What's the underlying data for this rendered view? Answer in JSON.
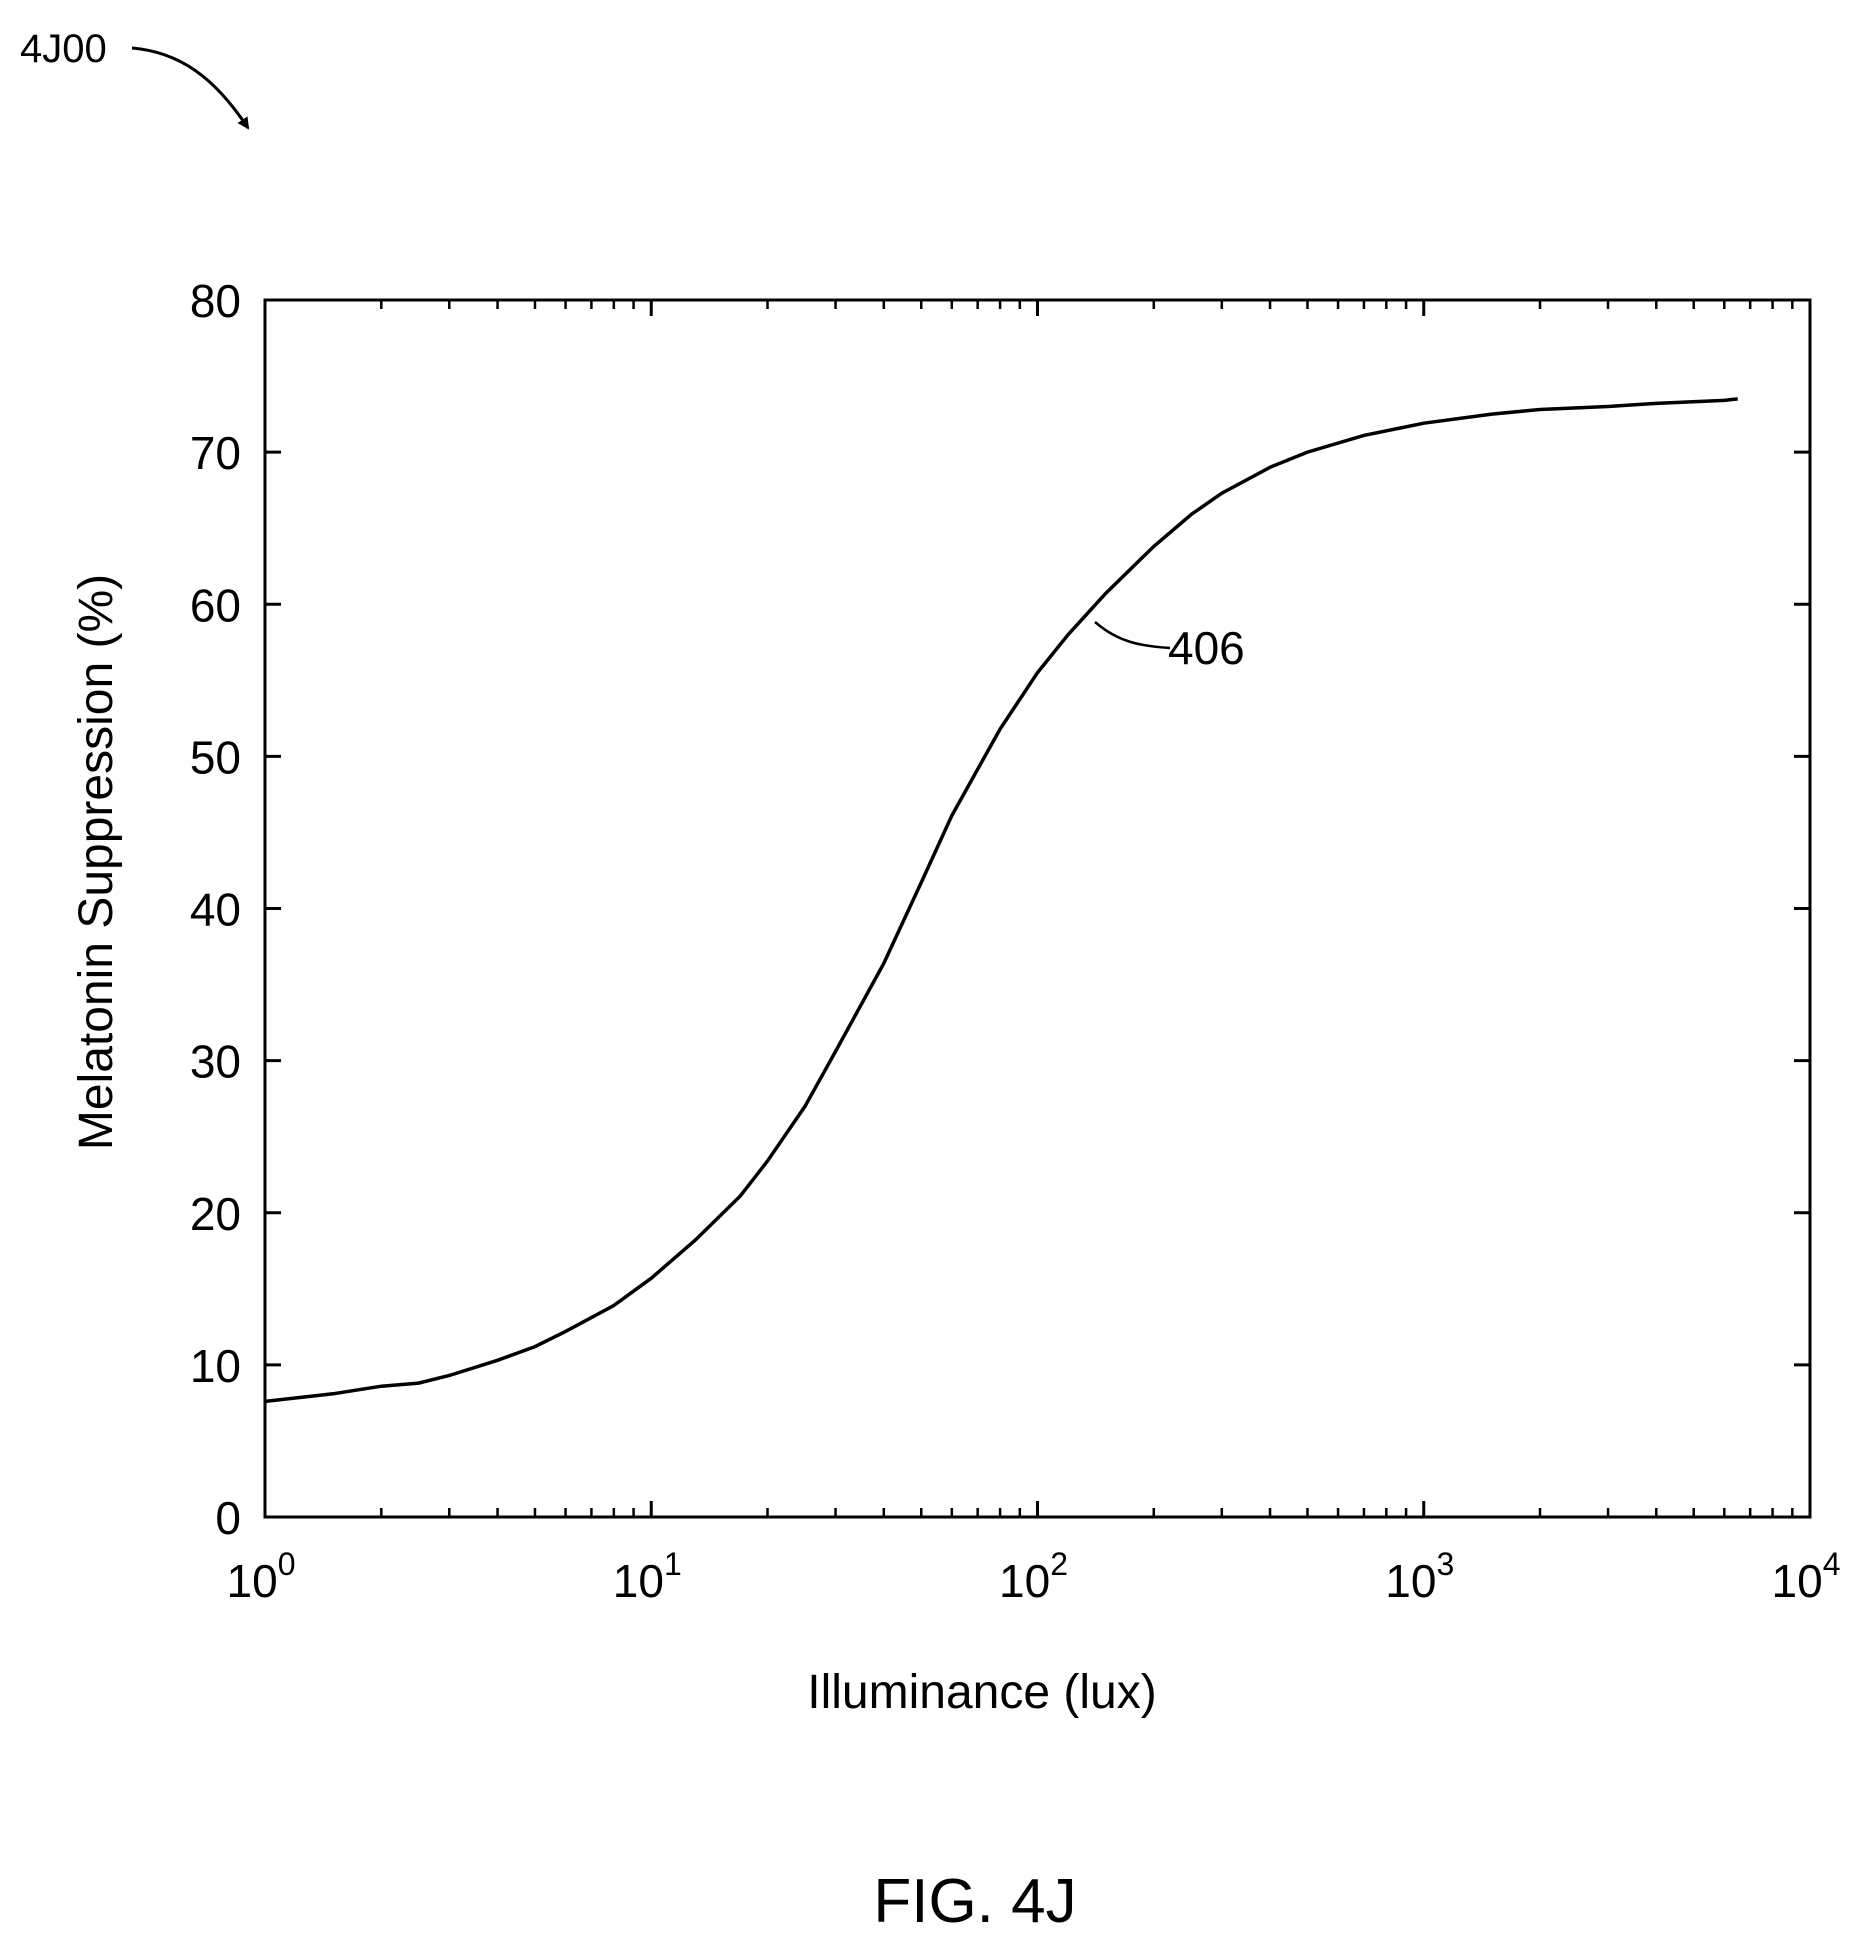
{
  "figure": {
    "reference_label": "4J00",
    "caption": "FIG. 4J",
    "callout_label": "406"
  },
  "chart_data": {
    "type": "line",
    "title": "",
    "xlabel": "Illuminance (lux)",
    "ylabel": "Melatonin Suppression (%)",
    "xscale": "log",
    "xlim": [
      1,
      10000
    ],
    "ylim": [
      0,
      80
    ],
    "x_ticks": [
      {
        "value": 1,
        "base": "10",
        "exp": "0"
      },
      {
        "value": 10,
        "base": "10",
        "exp": "1"
      },
      {
        "value": 100,
        "base": "10",
        "exp": "2"
      },
      {
        "value": 1000,
        "base": "10",
        "exp": "3"
      },
      {
        "value": 10000,
        "base": "10",
        "exp": "4"
      }
    ],
    "y_ticks": [
      0,
      10,
      20,
      30,
      40,
      50,
      60,
      70,
      80
    ],
    "grid": false,
    "series": [
      {
        "x": [
          1,
          1.5,
          2,
          2.5,
          3,
          4,
          5,
          6,
          8,
          10,
          13,
          17,
          20,
          25,
          30,
          40,
          50,
          60,
          80,
          100,
          120,
          150,
          200,
          250,
          300,
          400,
          500,
          700,
          1000,
          1500,
          2000,
          3000,
          4000,
          6000,
          6500
        ],
        "y": [
          7.6,
          8.1,
          8.6,
          8.8,
          9.3,
          10.3,
          11.2,
          12.2,
          13.9,
          15.7,
          18.2,
          21.1,
          23.4,
          27.0,
          30.6,
          36.4,
          41.7,
          46.1,
          51.8,
          55.5,
          58.0,
          60.7,
          63.8,
          65.9,
          67.3,
          69.0,
          70.0,
          71.1,
          71.9,
          72.5,
          72.8,
          73.0,
          73.2,
          73.4,
          73.5
        ]
      }
    ]
  }
}
